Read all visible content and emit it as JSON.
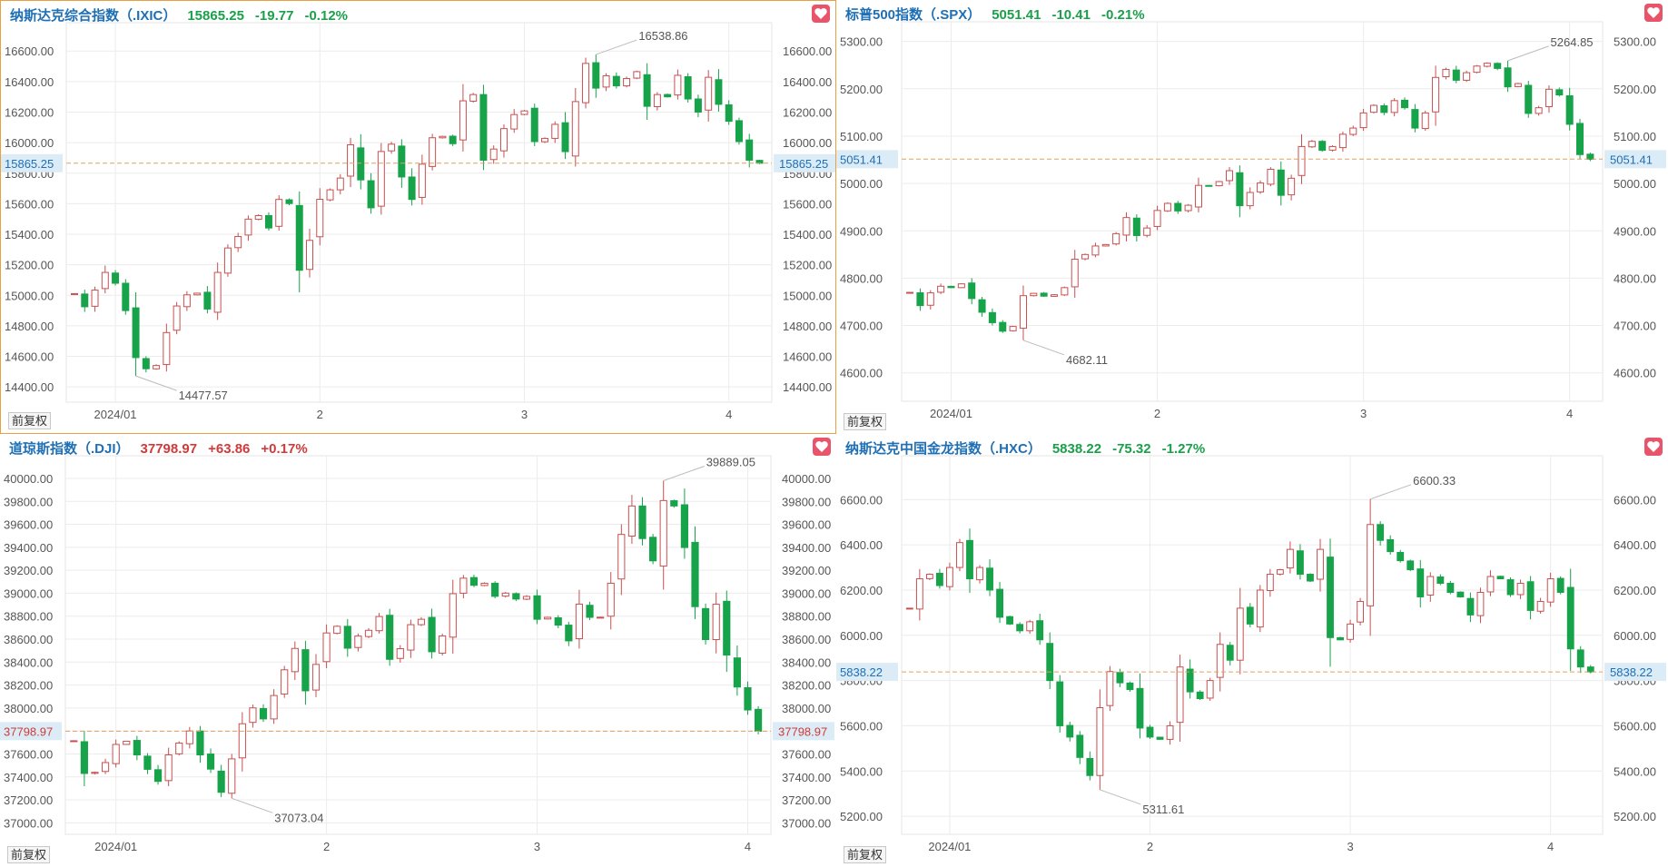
{
  "adjust_label": "前复权",
  "colors": {
    "up": "#c85050",
    "down": "#17a34a",
    "grid": "#ececec",
    "axis": "#555555",
    "price_line": "#e3a060",
    "price_tag_bg": "#dcecf6",
    "price_tag_text": "#1e6fb5",
    "price_tag_text_up": "#d03a3a",
    "favorite": "#e8546a"
  },
  "icons": {
    "favorite": "heart-icon"
  },
  "chart_data": [
    {
      "id": "ixic",
      "type": "candlestick",
      "title": "纳斯达克综合指数（.IXIC）",
      "last": "15865.25",
      "change": "-19.77",
      "change_pct": "-0.12%",
      "direction": "down",
      "yticks": [
        "16600.00",
        "16400.00",
        "16200.00",
        "16000.00",
        "15800.00",
        "15600.00",
        "15400.00",
        "15200.00",
        "15000.00",
        "14800.00",
        "14600.00",
        "14400.00"
      ],
      "ylim": [
        14300,
        16750
      ],
      "xticks": [
        {
          "label": "2024/01",
          "i": 4
        },
        {
          "label": "2",
          "i": 24
        },
        {
          "label": "3",
          "i": 44
        },
        {
          "label": "4",
          "i": 64
        }
      ],
      "high_label": "16538.86",
      "low_label": "14477.57",
      "current": 15865.25,
      "series": [
        15011,
        14925,
        15034,
        15150,
        15079,
        14900,
        14592,
        14519,
        14540,
        14756,
        14930,
        15003,
        15014,
        14910,
        15150,
        15310,
        15385,
        15499,
        15522,
        15441,
        15628,
        15601,
        15164,
        15360,
        15629,
        15691,
        15768,
        15986,
        15756,
        15573,
        15942,
        15990,
        15775,
        15628,
        15859,
        16032,
        16041,
        15993,
        16274,
        16315,
        15885,
        15958,
        16092,
        16184,
        16208,
        16007,
        16028,
        16120,
        15941,
        16269,
        16519,
        16357,
        16438,
        16372,
        16420,
        16465,
        16238,
        16315,
        16300,
        16441,
        16286,
        16200,
        16428,
        16251,
        16140,
        16007,
        15885,
        15865
      ]
    },
    {
      "id": "spx",
      "type": "candlestick",
      "title": "标普500指数（.SPX）",
      "last": "5051.41",
      "change": "-10.41",
      "change_pct": "-0.21%",
      "direction": "down",
      "yticks": [
        "5300.00",
        "5200.00",
        "5100.00",
        "5000.00",
        "4900.00",
        "4800.00",
        "4700.00",
        "4600.00"
      ],
      "ylim": [
        4540,
        5330
      ],
      "xticks": [
        {
          "label": "2024/01",
          "i": 4
        },
        {
          "label": "2",
          "i": 24
        },
        {
          "label": "3",
          "i": 44
        },
        {
          "label": "4",
          "i": 64
        }
      ],
      "high_label": "5264.85",
      "low_label": "4682.11",
      "current": 5051.41,
      "series": [
        4770,
        4742,
        4769,
        4783,
        4780,
        4788,
        4757,
        4728,
        4706,
        4688,
        4698,
        4763,
        4768,
        4762,
        4765,
        4780,
        4840,
        4850,
        4868,
        4871,
        4894,
        4928,
        4890,
        4906,
        4943,
        4958,
        4942,
        4954,
        4996,
        4995,
        5004,
        5027,
        4953,
        4981,
        5001,
        5030,
        4975,
        5011,
        5078,
        5089,
        5070,
        5078,
        5104,
        5117,
        5149,
        5165,
        5150,
        5175,
        5160,
        5117,
        5149,
        5224,
        5241,
        5218,
        5234,
        5248,
        5254,
        5243,
        5204,
        5211,
        5148,
        5160,
        5199,
        5187,
        5125,
        5061,
        5051
      ]
    },
    {
      "id": "dji",
      "type": "candlestick",
      "title": "道琼斯指数（.DJI）",
      "last": "37798.97",
      "change": "+63.86",
      "change_pct": "+0.17%",
      "direction": "up",
      "yticks": [
        "40000.00",
        "39800.00",
        "39600.00",
        "39400.00",
        "39200.00",
        "39000.00",
        "38800.00",
        "38600.00",
        "38400.00",
        "38200.00",
        "38000.00",
        "37800.00",
        "37600.00",
        "37400.00",
        "37200.00",
        "37000.00"
      ],
      "ylim": [
        36900,
        40150
      ],
      "xticks": [
        {
          "label": "2024/01",
          "i": 4
        },
        {
          "label": "2",
          "i": 24
        },
        {
          "label": "3",
          "i": 44
        },
        {
          "label": "4",
          "i": 64
        }
      ],
      "high_label": "39889.05",
      "low_label": "37073.04",
      "current": 37798.97,
      "series": [
        37715,
        37430,
        37440,
        37525,
        37683,
        37711,
        37592,
        37466,
        37361,
        37592,
        37695,
        37800,
        37592,
        37468,
        37266,
        37557,
        37863,
        38001,
        37905,
        38109,
        38333,
        38519,
        38150,
        38380,
        38654,
        38712,
        38521,
        38627,
        38677,
        38797,
        38424,
        38517,
        38726,
        38773,
        38490,
        38628,
        38996,
        39131,
        39069,
        39087,
        38973,
        39001,
        38949,
        38972,
        38773,
        38790,
        38722,
        38585,
        38905,
        38790,
        38791,
        39087,
        39512,
        39760,
        39476,
        39282,
        39807,
        39760,
        39398,
        38883,
        38596,
        38904,
        38461,
        38183,
        37983,
        37798
      ]
    },
    {
      "id": "hxc",
      "type": "candlestick",
      "title": "纳斯达克中国金龙指数（.HXC）",
      "last": "5838.22",
      "change": "-75.32",
      "change_pct": "-1.27%",
      "direction": "down",
      "yticks": [
        "6600.00",
        "6400.00",
        "6200.00",
        "6000.00",
        "5800.00",
        "5600.00",
        "5400.00",
        "5200.00"
      ],
      "ylim": [
        5120,
        6770
      ],
      "xticks": [
        {
          "label": "2024/01",
          "i": 4
        },
        {
          "label": "2",
          "i": 24
        },
        {
          "label": "3",
          "i": 44
        },
        {
          "label": "4",
          "i": 64
        }
      ],
      "high_label": "6600.33",
      "low_label": "5311.61",
      "current": 5838.22,
      "series": [
        6120,
        6250,
        6270,
        6220,
        6300,
        6410,
        6250,
        6300,
        6200,
        6080,
        6050,
        6020,
        6060,
        5980,
        5800,
        5600,
        5550,
        5460,
        5380,
        5680,
        5840,
        5790,
        5760,
        5590,
        5550,
        5540,
        5600,
        5860,
        5750,
        5720,
        5800,
        5960,
        5890,
        6120,
        6050,
        6200,
        6270,
        6290,
        6380,
        6270,
        6240,
        6380,
        5990,
        5980,
        6050,
        6150,
        6490,
        6420,
        6370,
        6330,
        6290,
        6170,
        6260,
        6230,
        6190,
        6170,
        6090,
        6190,
        6260,
        6250,
        6180,
        6230,
        6110,
        6150,
        6250,
        6190,
        5940,
        5860,
        5838
      ]
    }
  ]
}
